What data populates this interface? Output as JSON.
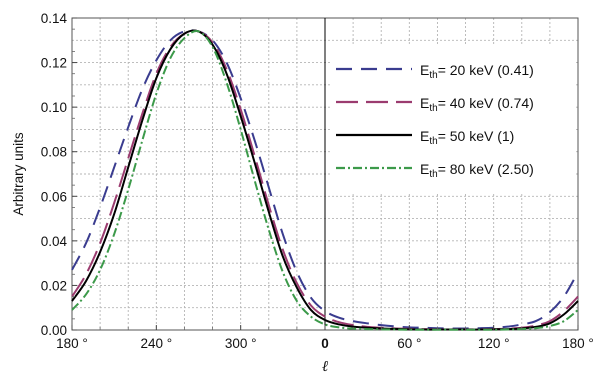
{
  "chart_data": {
    "type": "line",
    "title": "",
    "xlabel": "ℓ",
    "ylabel": "Arbitrary units",
    "x_axis": {
      "tick_labels": [
        "180 °",
        "240 °",
        "300 °",
        "0",
        "60 °",
        "120 °",
        "180 °"
      ],
      "tick_values_deg": [
        180,
        240,
        300,
        360,
        420,
        480,
        540
      ],
      "range_deg": [
        180,
        540
      ],
      "center_label": "0"
    },
    "y_axis": {
      "ylim": [
        0,
        0.14
      ],
      "tick_labels": [
        "0.00",
        "0.02",
        "0.04",
        "0.06",
        "0.08",
        "0.10",
        "0.12",
        "0.14"
      ],
      "tick_values": [
        0,
        0.02,
        0.04,
        0.06,
        0.08,
        0.1,
        0.12,
        0.14
      ]
    },
    "grid": true,
    "legend_position": "right",
    "x": [
      180,
      190,
      200,
      210,
      220,
      230,
      240,
      250,
      260,
      270,
      280,
      290,
      300,
      310,
      320,
      330,
      340,
      350,
      360,
      370,
      380,
      390,
      400,
      410,
      420,
      430,
      440,
      450,
      460,
      470,
      480,
      490,
      500,
      510,
      520,
      530,
      540
    ],
    "series": [
      {
        "name_main": "E",
        "name_sub": "th",
        "name_rest": "= 20 keV (0.41)",
        "style": "dashed",
        "color": "#3a3c8f",
        "values": [
          0.027,
          0.039,
          0.055,
          0.073,
          0.091,
          0.108,
          0.121,
          0.13,
          0.134,
          0.134,
          0.13,
          0.12,
          0.104,
          0.085,
          0.064,
          0.043,
          0.026,
          0.0145,
          0.0085,
          0.0055,
          0.004,
          0.003,
          0.0022,
          0.0016,
          0.0012,
          0.001,
          0.0008,
          0.0007,
          0.0007,
          0.0008,
          0.001,
          0.0015,
          0.0025,
          0.004,
          0.008,
          0.015,
          0.026
        ]
      },
      {
        "name_main": "E",
        "name_sub": "th",
        "name_rest": "= 40 keV (0.74)",
        "style": "long-dashed",
        "color": "#9b3b6f",
        "values": [
          0.015,
          0.025,
          0.039,
          0.057,
          0.077,
          0.097,
          0.115,
          0.127,
          0.133,
          0.134,
          0.129,
          0.117,
          0.099,
          0.078,
          0.056,
          0.036,
          0.021,
          0.011,
          0.006,
          0.0035,
          0.0022,
          0.0014,
          0.001,
          0.0007,
          0.0005,
          0.0004,
          0.0003,
          0.0003,
          0.0003,
          0.0003,
          0.0004,
          0.0006,
          0.001,
          0.002,
          0.004,
          0.0085,
          0.015
        ]
      },
      {
        "name_main": "E",
        "name_sub": "th",
        "name_rest": "= 50 keV (1)",
        "style": "solid",
        "color": "#000000",
        "values": [
          0.013,
          0.022,
          0.035,
          0.052,
          0.073,
          0.094,
          0.113,
          0.126,
          0.133,
          0.134,
          0.128,
          0.115,
          0.096,
          0.075,
          0.053,
          0.033,
          0.019,
          0.009,
          0.0045,
          0.0025,
          0.0015,
          0.001,
          0.0007,
          0.0005,
          0.0003,
          0.0002,
          0.0002,
          0.0002,
          0.0002,
          0.0002,
          0.0003,
          0.0004,
          0.0007,
          0.0014,
          0.003,
          0.007,
          0.013
        ]
      },
      {
        "name_main": "E",
        "name_sub": "th",
        "name_rest": "= 80 keV (2.50)",
        "style": "dash-dot",
        "color": "#3c9a4a",
        "values": [
          0.009,
          0.016,
          0.027,
          0.043,
          0.063,
          0.085,
          0.106,
          0.122,
          0.131,
          0.134,
          0.127,
          0.111,
          0.09,
          0.067,
          0.045,
          0.026,
          0.013,
          0.006,
          0.0025,
          0.0012,
          0.0006,
          0.0004,
          0.0003,
          0.0002,
          0.0001,
          0.0001,
          0.0001,
          0.0001,
          0.0001,
          0.0001,
          0.0001,
          0.0002,
          0.0004,
          0.0008,
          0.0018,
          0.004,
          0.009
        ]
      }
    ]
  }
}
